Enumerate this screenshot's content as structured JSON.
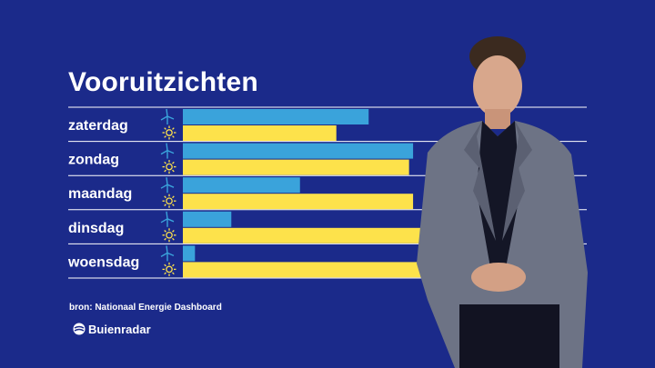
{
  "title": "Vooruitzichten",
  "source": "bron: Nationaal Energie Dashboard",
  "brand": {
    "name": "Buienradar",
    "logo_icon": "buienradar-logo-icon"
  },
  "colors": {
    "background": "#1b2a8a",
    "wind": "#3aa3db",
    "solar": "#fde24b",
    "text": "#ffffff",
    "grid": "#ffffff"
  },
  "chart_data": {
    "type": "bar",
    "orientation": "horizontal",
    "categories": [
      "zaterdag",
      "zondag",
      "maandag",
      "dinsdag",
      "woensdag"
    ],
    "series": [
      {
        "icon": "wind-turbine-icon",
        "color": "#3aa3db",
        "values": [
          46,
          57,
          29,
          12,
          3
        ]
      },
      {
        "icon": "sun-icon",
        "color": "#fde24b",
        "values": [
          38,
          56,
          57,
          60,
          59
        ]
      }
    ],
    "xlim": [
      0,
      100
    ],
    "grid": true
  }
}
